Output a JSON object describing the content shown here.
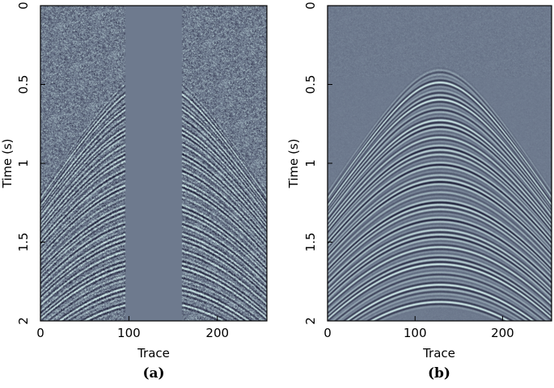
{
  "chart_data": [
    {
      "type": "heatmap",
      "panel_label": "(a)",
      "xlabel": "Trace",
      "ylabel": "Time (s)",
      "xlim": [
        0,
        256
      ],
      "ylim": [
        2,
        0
      ],
      "x_ticks": [
        "0",
        "100",
        "200"
      ],
      "x_tick_values": [
        0,
        100,
        200
      ],
      "y_ticks": [
        "0",
        "0.5",
        "1",
        "1.5",
        "2"
      ],
      "y_tick_values": [
        0,
        0.5,
        1,
        1.5,
        2
      ],
      "grid": false,
      "content": "noisy seismic shot gather with hyperbolic events and missing traces",
      "apex_trace": 128,
      "apex_time": 0.42,
      "gap_traces": [
        96,
        160
      ],
      "noisy": true
    },
    {
      "type": "heatmap",
      "panel_label": "(b)",
      "xlabel": "Trace",
      "ylabel": "Time (s)",
      "xlim": [
        0,
        256
      ],
      "ylim": [
        2,
        0
      ],
      "x_ticks": [
        "0",
        "100",
        "200"
      ],
      "x_tick_values": [
        0,
        100,
        200
      ],
      "y_ticks": [
        "0",
        "0.5",
        "1",
        "1.5",
        "2"
      ],
      "y_tick_values": [
        0,
        0.5,
        1,
        1.5,
        2
      ],
      "grid": false,
      "content": "reconstructed seismic shot gather",
      "apex_trace": 128,
      "apex_time": 0.42,
      "gap_traces": null,
      "noisy": false
    }
  ],
  "colors": {
    "seismic_dark": "#1a1a33",
    "seismic_mid": "#6e7a8e",
    "seismic_light": "#d6f2ee",
    "gap_fill": "#6e7a8e"
  }
}
